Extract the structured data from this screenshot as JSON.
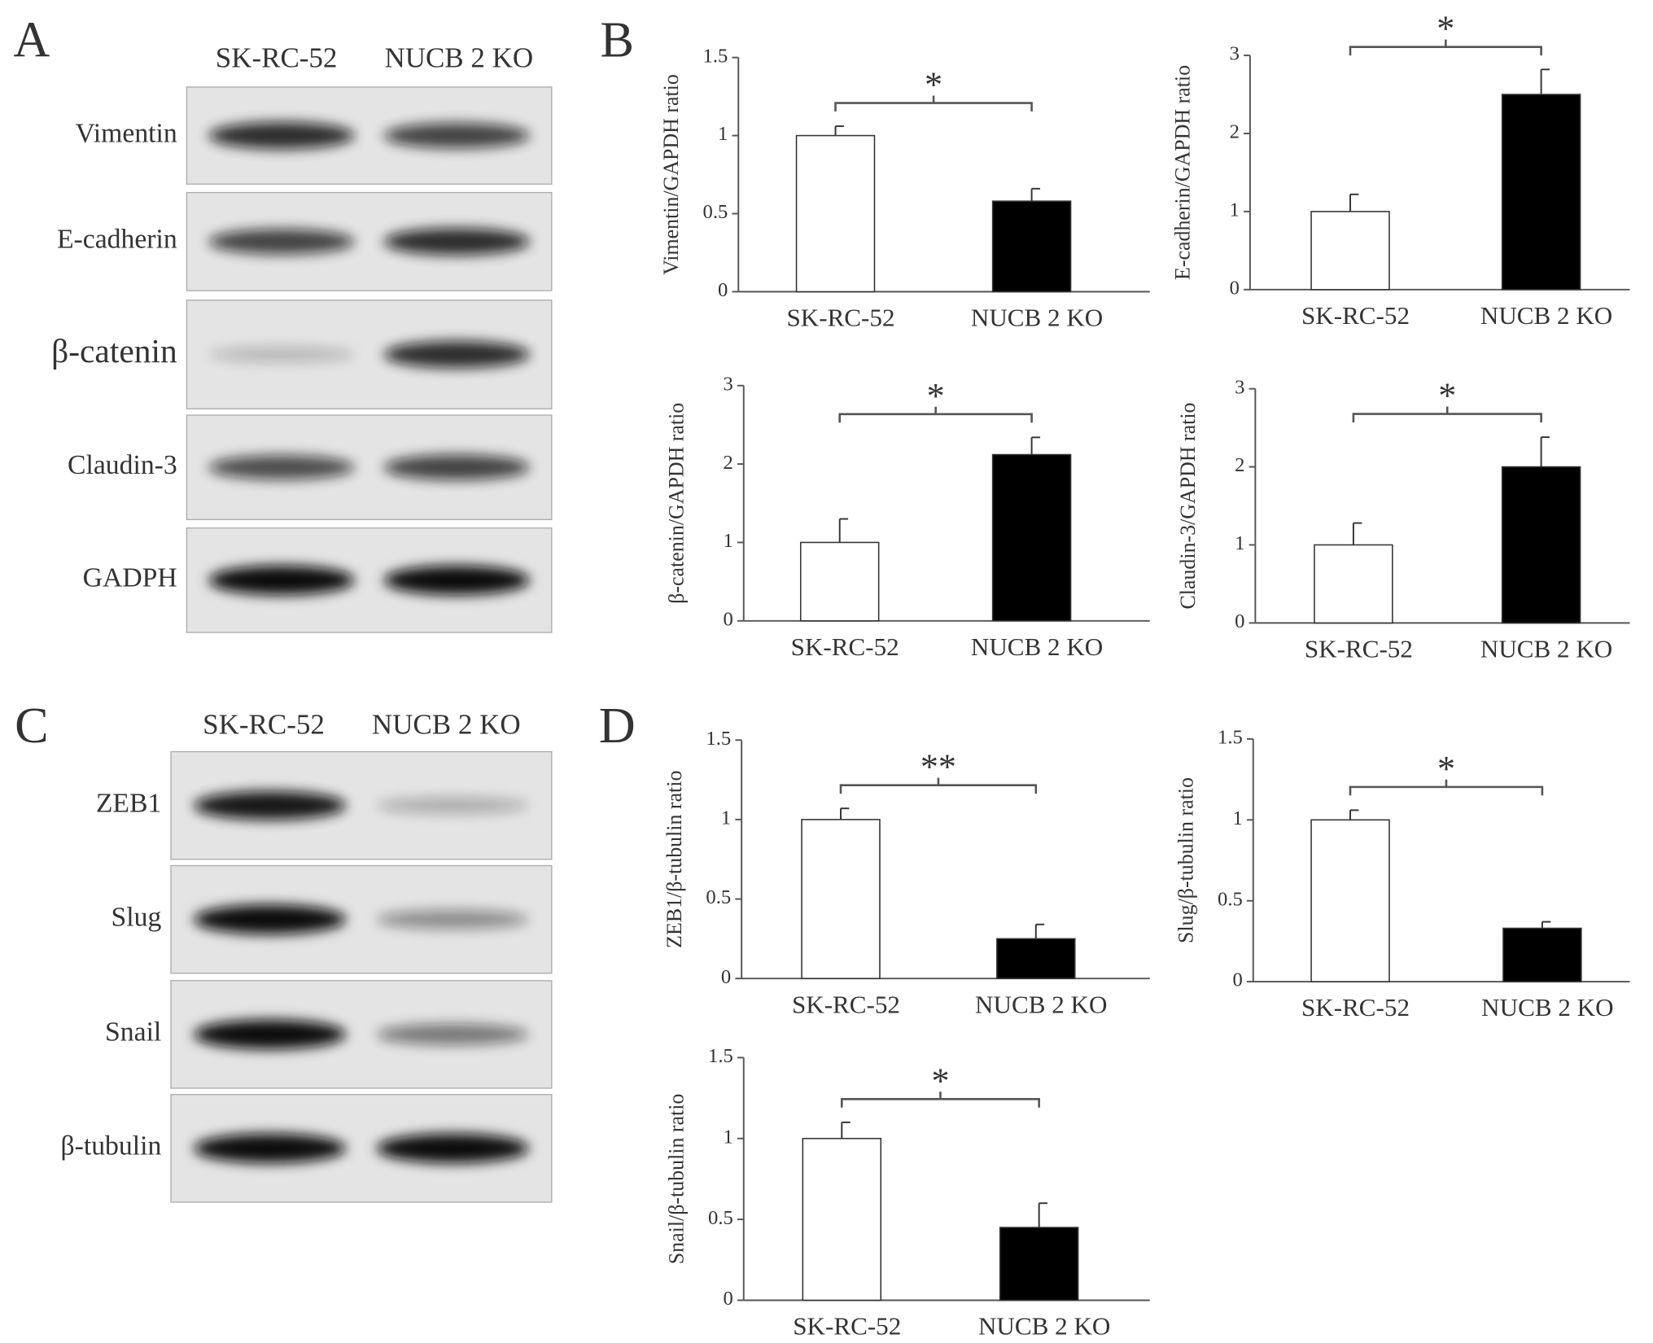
{
  "blots": [
    {
      "letter": "A",
      "columns": [
        "SK-RC-52",
        "NUCB 2 KO"
      ],
      "rows": [
        "Vimentin",
        "E-cadherin",
        "β-catenin",
        "Claudin-3",
        "GADPH"
      ]
    },
    {
      "letter": "C",
      "columns": [
        "SK-RC-52",
        "NUCB 2 KO"
      ],
      "rows": [
        "ZEB1",
        "Slug",
        "Snail",
        "β-tubulin"
      ]
    }
  ],
  "panel_letters": [
    "B",
    "D"
  ],
  "chart_data": [
    {
      "type": "bar",
      "y_label": "Vimentin/GAPDH ratio",
      "categories": [
        "SK-RC-52",
        "NUCB 2 KO"
      ],
      "values": [
        1,
        0.58
      ],
      "errors": [
        0.06,
        0.08
      ],
      "colors": [
        "#ffffff",
        "#000000"
      ],
      "ylim": [
        0,
        1.5
      ],
      "yticks": [
        0,
        0.5,
        1,
        1.5
      ],
      "annotation": "*"
    },
    {
      "type": "bar",
      "y_label": "E-cadherin/GAPDH ratio",
      "categories": [
        "SK-RC-52",
        "NUCB 2 KO"
      ],
      "values": [
        1,
        2.5
      ],
      "errors": [
        0.22,
        0.32
      ],
      "colors": [
        "#ffffff",
        "#000000"
      ],
      "ylim": [
        0,
        3
      ],
      "yticks": [
        0,
        1,
        2,
        3
      ],
      "annotation": "*"
    },
    {
      "type": "bar",
      "y_label": "β-catenin/GAPDH ratio",
      "categories": [
        "SK-RC-52",
        "NUCB 2 KO"
      ],
      "values": [
        1,
        2.12
      ],
      "errors": [
        0.3,
        0.22
      ],
      "colors": [
        "#ffffff",
        "#000000"
      ],
      "ylim": [
        0,
        3
      ],
      "yticks": [
        0,
        1,
        2,
        3
      ],
      "annotation": "*"
    },
    {
      "type": "bar",
      "y_label": "Claudin-3/GAPDH ratio",
      "categories": [
        "SK-RC-52",
        "NUCB 2 KO"
      ],
      "values": [
        1,
        2.0
      ],
      "errors": [
        0.28,
        0.38
      ],
      "colors": [
        "#ffffff",
        "#000000"
      ],
      "ylim": [
        0,
        3
      ],
      "yticks": [
        0,
        1,
        2,
        3
      ],
      "annotation": "*"
    },
    {
      "type": "bar",
      "y_label": "ZEB1/β-tubulin ratio",
      "categories": [
        "SK-RC-52",
        "NUCB 2 KO"
      ],
      "values": [
        1,
        0.25
      ],
      "errors": [
        0.07,
        0.09
      ],
      "colors": [
        "#ffffff",
        "#000000"
      ],
      "ylim": [
        0,
        1.5
      ],
      "yticks": [
        0,
        0.5,
        1,
        1.5
      ],
      "annotation": "**"
    },
    {
      "type": "bar",
      "y_label": "Slug/β-tubulin ratio",
      "categories": [
        "SK-RC-52",
        "NUCB 2 KO"
      ],
      "values": [
        1,
        0.33
      ],
      "errors": [
        0.06,
        0.04
      ],
      "colors": [
        "#ffffff",
        "#000000"
      ],
      "ylim": [
        0,
        1.5
      ],
      "yticks": [
        0,
        0.5,
        1,
        1.5
      ],
      "annotation": "*"
    },
    {
      "type": "bar",
      "y_label": "Snail/β-tubulin ratio",
      "categories": [
        "SK-RC-52",
        "NUCB 2 KO"
      ],
      "values": [
        1,
        0.45
      ],
      "errors": [
        0.1,
        0.15
      ],
      "colors": [
        "#ffffff",
        "#000000"
      ],
      "ylim": [
        0,
        1.5
      ],
      "yticks": [
        0,
        0.5,
        1,
        1.5
      ],
      "annotation": "*"
    }
  ]
}
